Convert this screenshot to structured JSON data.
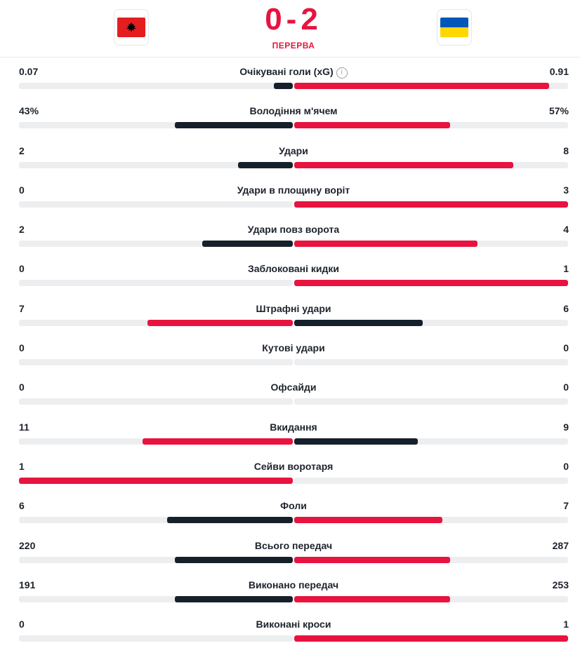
{
  "match": {
    "home_team_flag": "albania-flag-icon",
    "away_team_flag": "ukraine-flag-icon",
    "score": "0-2",
    "status": "ПЕРЕРВА"
  },
  "colors": {
    "accent": "#e8133f",
    "dark": "#16202a",
    "track": "#edeef0"
  },
  "stats": [
    {
      "label": "Очікувані голи (xG)",
      "home": "0.07",
      "away": "0.91",
      "home_fill": 0.07,
      "away_fill": 0.93,
      "leader": "away",
      "info_icon": true
    },
    {
      "label": "Володіння м'ячем",
      "home": "43%",
      "away": "57%",
      "home_fill": 0.43,
      "away_fill": 0.57,
      "leader": "away"
    },
    {
      "label": "Удари",
      "home": "2",
      "away": "8",
      "home_fill": 0.2,
      "away_fill": 0.8,
      "leader": "away"
    },
    {
      "label": "Удари в площину воріт",
      "home": "0",
      "away": "3",
      "home_fill": 0,
      "away_fill": 1,
      "leader": "away"
    },
    {
      "label": "Удари повз ворота",
      "home": "2",
      "away": "4",
      "home_fill": 0.33,
      "away_fill": 0.67,
      "leader": "away"
    },
    {
      "label": "Заблоковані кидки",
      "home": "0",
      "away": "1",
      "home_fill": 0,
      "away_fill": 1,
      "leader": "away"
    },
    {
      "label": "Штрафні удари",
      "home": "7",
      "away": "6",
      "home_fill": 0.53,
      "away_fill": 0.47,
      "leader": "home"
    },
    {
      "label": "Кутові удари",
      "home": "0",
      "away": "0",
      "home_fill": 0,
      "away_fill": 0,
      "leader": "none"
    },
    {
      "label": "Офсайди",
      "home": "0",
      "away": "0",
      "home_fill": 0,
      "away_fill": 0,
      "leader": "none"
    },
    {
      "label": "Вкидання",
      "home": "11",
      "away": "9",
      "home_fill": 0.55,
      "away_fill": 0.45,
      "leader": "home"
    },
    {
      "label": "Сейви воротаря",
      "home": "1",
      "away": "0",
      "home_fill": 1,
      "away_fill": 0,
      "leader": "home"
    },
    {
      "label": "Фоли",
      "home": "6",
      "away": "7",
      "home_fill": 0.46,
      "away_fill": 0.54,
      "leader": "away"
    },
    {
      "label": "Всього передач",
      "home": "220",
      "away": "287",
      "home_fill": 0.43,
      "away_fill": 0.57,
      "leader": "away"
    },
    {
      "label": "Виконано передач",
      "home": "191",
      "away": "253",
      "home_fill": 0.43,
      "away_fill": 0.57,
      "leader": "away"
    },
    {
      "label": "Виконані кроси",
      "home": "0",
      "away": "1",
      "home_fill": 0,
      "away_fill": 1,
      "leader": "away"
    }
  ]
}
